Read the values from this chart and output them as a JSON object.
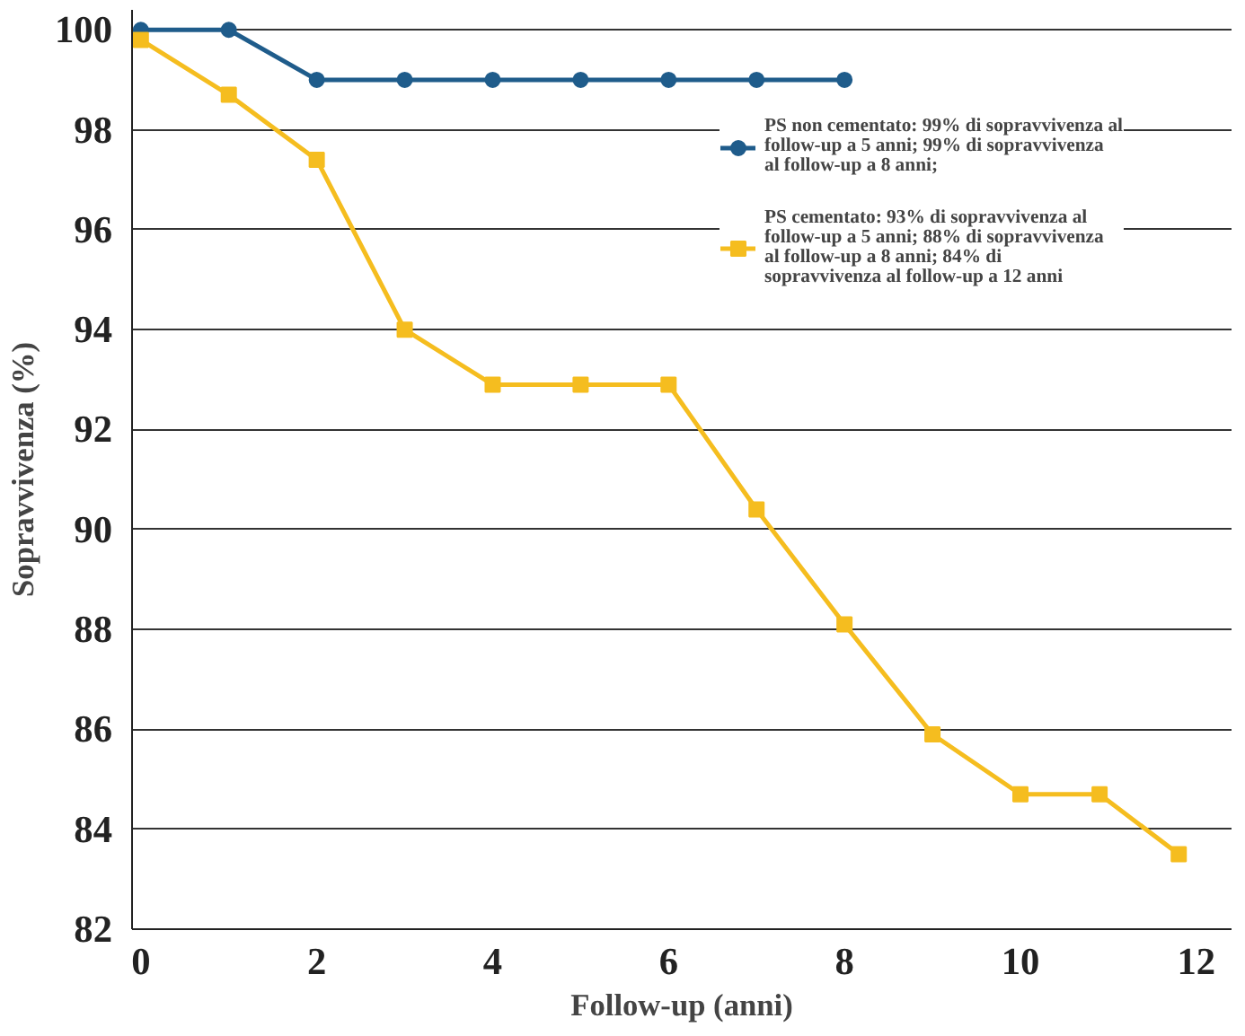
{
  "chart_data": {
    "type": "line",
    "xlabel": "Follow-up (anni)",
    "ylabel": "Sopravvivenza (%)",
    "xlim": [
      -0.1,
      12.4
    ],
    "ylim": [
      82,
      100.4
    ],
    "xticks": [
      0,
      2,
      4,
      6,
      8,
      10,
      12
    ],
    "yticks": [
      82,
      84,
      86,
      88,
      90,
      92,
      94,
      96,
      98,
      100
    ],
    "grid": "y",
    "legend": "top right",
    "marker": "circle",
    "line_style": "solid",
    "series": [
      {
        "name": "PS non cementato: 99% di sopravvivenza al follow-up a 5 anni; 99% di sopravvivenza al follow-up a 8 anni;",
        "color": "#1f5c8b",
        "x": [
          0,
          1,
          2,
          3,
          4,
          5,
          6,
          7,
          8
        ],
        "values": [
          100,
          100,
          99,
          99,
          99,
          99,
          99,
          99,
          99
        ]
      },
      {
        "name": "PS cementato: 93% di sopravvivenza al follow-up a 5 anni; 88% di sopravvivenza al follow-up a 8 anni; 84% di sopravvivenza al follow-up a 12 anni",
        "color": "#f5bd1f",
        "marker": "square",
        "x": [
          0,
          1,
          2,
          3,
          4,
          5,
          6,
          7,
          8,
          9,
          10,
          10.9,
          11.8
        ],
        "values": [
          99.8,
          98.7,
          97.4,
          94.0,
          92.9,
          92.9,
          92.9,
          90.4,
          88.1,
          85.9,
          84.7,
          84.7,
          83.5
        ]
      }
    ]
  }
}
